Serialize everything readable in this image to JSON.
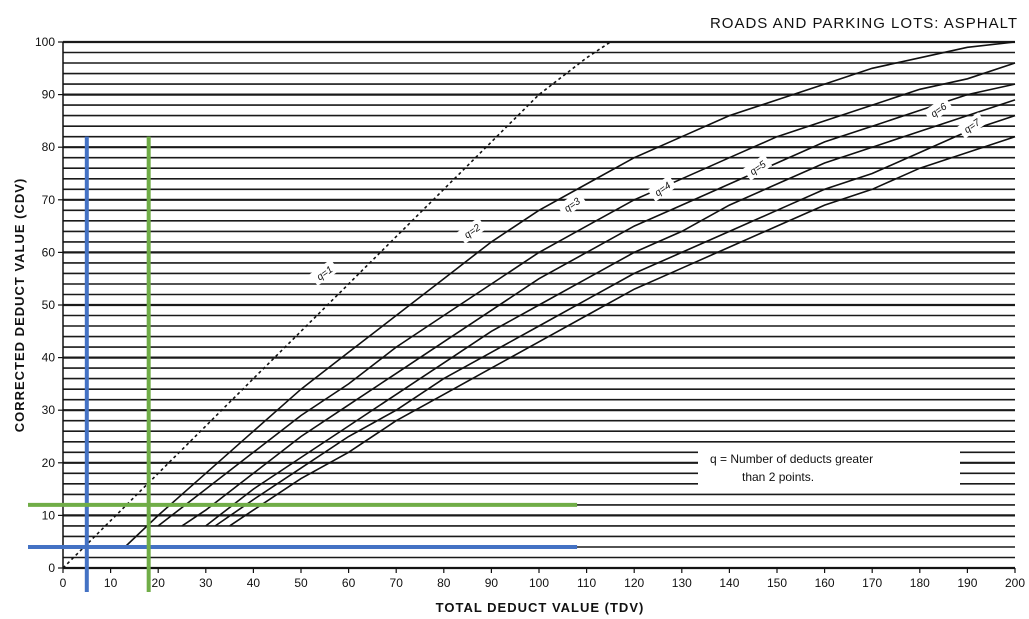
{
  "chart_data": {
    "type": "line",
    "title": "ROADS AND PARKING LOTS:  ASPHALT",
    "xlabel": "TOTAL DEDUCT VALUE (TDV)",
    "ylabel": "CORRECTED DEDUCT VALUE (CDV)",
    "xlim": [
      0,
      200
    ],
    "ylim": [
      0,
      100
    ],
    "x_ticks": [
      0,
      10,
      20,
      30,
      40,
      50,
      60,
      70,
      80,
      90,
      100,
      110,
      120,
      130,
      140,
      150,
      160,
      170,
      180,
      190,
      200
    ],
    "y_ticks": [
      0,
      10,
      20,
      30,
      40,
      50,
      60,
      70,
      80,
      90,
      100
    ],
    "x_tick_labels": [
      "0",
      "10",
      "20",
      "30",
      "40",
      "50",
      "60",
      "70",
      "80",
      "90",
      "100",
      "110",
      "120",
      "130",
      "140",
      "150",
      "160",
      "170",
      "180",
      "190",
      "200"
    ],
    "y_tick_labels": [
      "0",
      "10",
      "20",
      "30",
      "40",
      "50",
      "60",
      "70",
      "80",
      "90",
      "100"
    ],
    "grid": "horizontal",
    "series": [
      {
        "name": "q=1",
        "style": "dashed",
        "x": [
          0,
          10,
          20,
          30,
          40,
          50,
          60,
          70,
          80,
          90,
          100,
          110,
          115
        ],
        "y": [
          0,
          9,
          18,
          27,
          36,
          45,
          54,
          63,
          72,
          81,
          90,
          97,
          100
        ]
      },
      {
        "name": "q=2",
        "style": "solid",
        "x": [
          13,
          20,
          30,
          40,
          50,
          60,
          70,
          80,
          90,
          100,
          110,
          120,
          130,
          140,
          150,
          160,
          170,
          180,
          190,
          200
        ],
        "y": [
          4,
          10,
          18,
          26,
          34,
          41,
          48,
          55,
          62,
          68,
          73,
          78,
          82,
          86,
          89,
          92,
          95,
          97,
          99,
          100
        ]
      },
      {
        "name": "q=3",
        "style": "solid",
        "x": [
          20,
          30,
          40,
          50,
          60,
          70,
          80,
          90,
          100,
          110,
          120,
          130,
          140,
          150,
          160,
          170,
          180,
          190,
          200
        ],
        "y": [
          8,
          15,
          22,
          29,
          35,
          42,
          48,
          54,
          60,
          65,
          70,
          74,
          78,
          82,
          85,
          88,
          91,
          93,
          96
        ]
      },
      {
        "name": "q=4",
        "style": "solid",
        "x": [
          25,
          30,
          40,
          50,
          60,
          70,
          80,
          90,
          100,
          110,
          120,
          130,
          140,
          150,
          160,
          170,
          180,
          190,
          200
        ],
        "y": [
          8,
          11,
          18,
          25,
          31,
          37,
          43,
          49,
          55,
          60,
          65,
          69,
          73,
          77,
          81,
          84,
          87,
          90,
          92
        ]
      },
      {
        "name": "q=5",
        "style": "solid",
        "x": [
          30,
          40,
          50,
          60,
          70,
          80,
          90,
          100,
          110,
          120,
          130,
          140,
          150,
          160,
          170,
          180,
          190,
          200
        ],
        "y": [
          8,
          15,
          21,
          27,
          33,
          39,
          45,
          50,
          55,
          60,
          64,
          69,
          73,
          77,
          80,
          83,
          86,
          89
        ]
      },
      {
        "name": "q=6",
        "style": "solid",
        "x": [
          32,
          40,
          50,
          60,
          70,
          80,
          90,
          100,
          110,
          120,
          130,
          140,
          150,
          160,
          170,
          180,
          190,
          200
        ],
        "y": [
          8,
          13,
          19,
          25,
          30,
          36,
          41,
          46,
          51,
          56,
          60,
          64,
          68,
          72,
          75,
          79,
          83,
          86
        ]
      },
      {
        "name": "q=7",
        "style": "solid",
        "x": [
          35,
          40,
          50,
          60,
          70,
          80,
          90,
          100,
          110,
          120,
          130,
          140,
          150,
          160,
          170,
          180,
          190,
          200
        ],
        "y": [
          8,
          11,
          17,
          22,
          28,
          33,
          38,
          43,
          48,
          53,
          57,
          61,
          65,
          69,
          72,
          76,
          79,
          82
        ]
      }
    ],
    "curve_labels": [
      {
        "text": "q=1",
        "x": 55,
        "y": 56
      },
      {
        "text": "q=2",
        "x": 86,
        "y": 64
      },
      {
        "text": "q=3",
        "x": 107,
        "y": 69
      },
      {
        "text": "q=4",
        "x": 126,
        "y": 72
      },
      {
        "text": "q=5",
        "x": 146,
        "y": 76
      },
      {
        "text": "q=6",
        "x": 184,
        "y": 87
      },
      {
        "text": "q=7",
        "x": 191,
        "y": 84
      }
    ],
    "reference_lines": [
      {
        "color": "#4472c4",
        "x": 5,
        "y": 4,
        "y_top": 82,
        "x_right": 108
      },
      {
        "color": "#70ad47",
        "x": 18,
        "y": 12,
        "y_top": 82,
        "x_right": 108
      }
    ],
    "legend": {
      "position": "bottom-right",
      "lines": [
        "q = Number of deducts greater",
        "than 2 points."
      ]
    }
  }
}
